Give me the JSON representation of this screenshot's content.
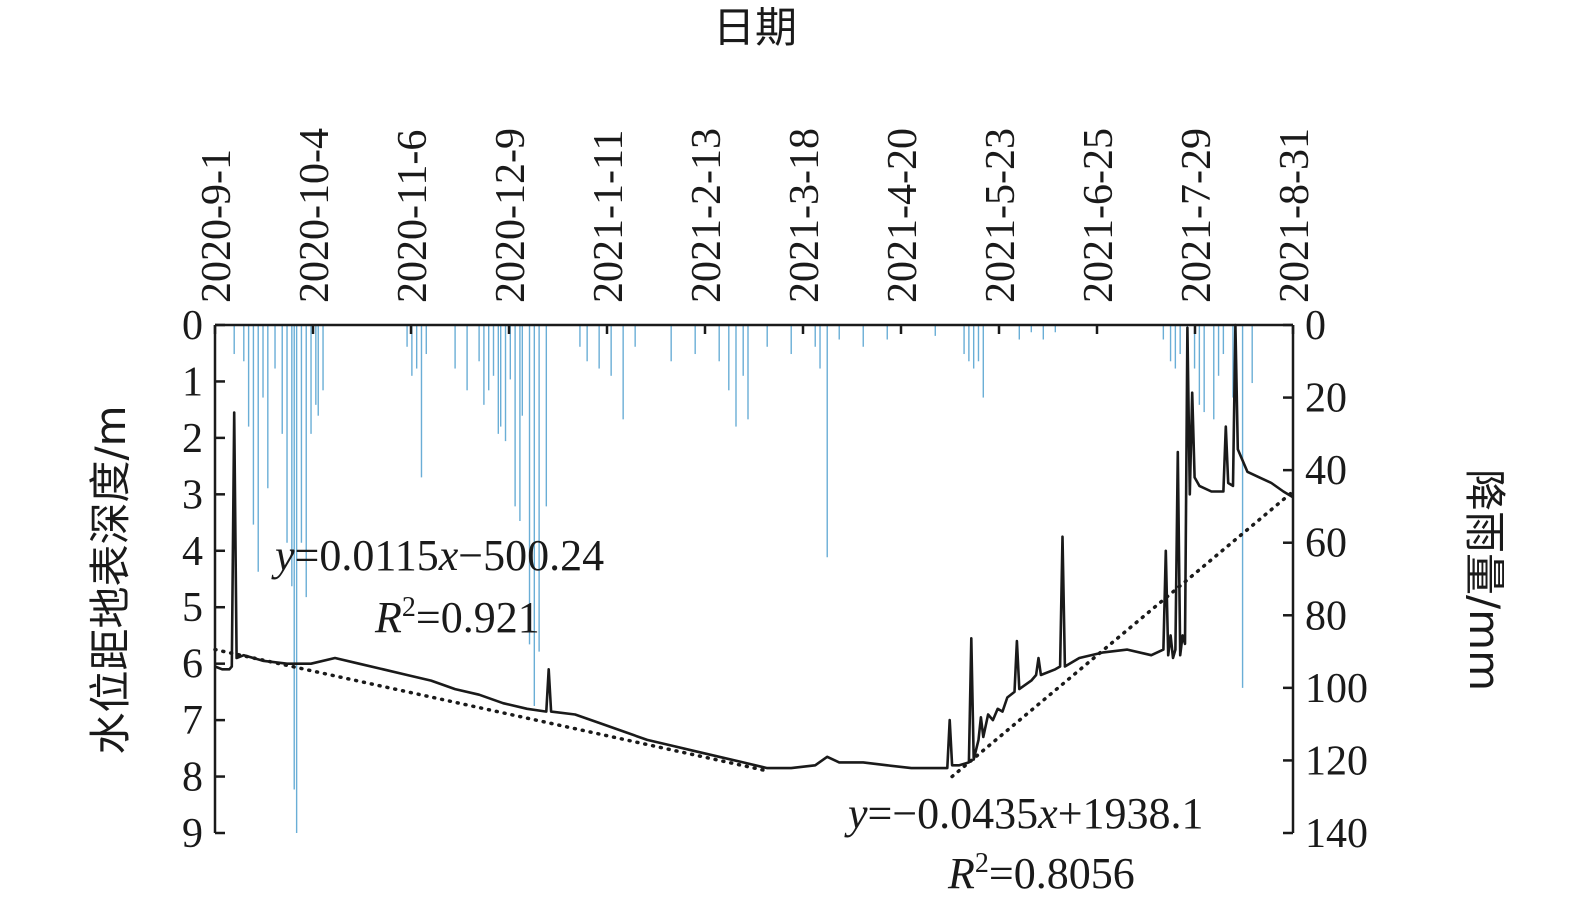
{
  "chart_data": {
    "type": "line",
    "x_axis": {
      "title": "日期",
      "position": "top",
      "tick_labels": [
        "2020-9-1",
        "2020-10-4",
        "2020-11-6",
        "2020-12-9",
        "2021-1-11",
        "2021-2-13",
        "2021-3-18",
        "2021-4-20",
        "2021-5-23",
        "2021-6-25",
        "2021-7-29",
        "2021-8-31"
      ]
    },
    "y_left": {
      "title": "水位距地表深度/m",
      "min": 0,
      "max": 9,
      "inverted": true,
      "ticks": [
        "0",
        "1",
        "2",
        "3",
        "4",
        "5",
        "6",
        "7",
        "8",
        "9"
      ]
    },
    "y_right": {
      "title": "降雨量/mm",
      "min": 0,
      "max": 140,
      "inverted": true,
      "ticks": [
        "0",
        "20",
        "40",
        "60",
        "80",
        "100",
        "120",
        "140"
      ]
    },
    "colors": {
      "water_level": "#1a1a1a",
      "rainfall": "#6aaed6",
      "trend": "#1a1a1a",
      "axis": "#1a1a1a"
    },
    "series": [
      {
        "kind": "line",
        "description": "groundwater depth (m)",
        "points": [
          [
            0,
            6.05
          ],
          [
            3,
            6.1
          ],
          [
            6,
            6.1
          ],
          [
            7,
            6.05
          ],
          [
            8,
            1.55
          ],
          [
            9,
            5.9
          ],
          [
            12,
            5.85
          ],
          [
            20,
            5.95
          ],
          [
            30,
            6.0
          ],
          [
            40,
            6.0
          ],
          [
            50,
            5.9
          ],
          [
            60,
            6.0
          ],
          [
            70,
            6.1
          ],
          [
            80,
            6.2
          ],
          [
            90,
            6.3
          ],
          [
            100,
            6.45
          ],
          [
            110,
            6.55
          ],
          [
            120,
            6.7
          ],
          [
            130,
            6.8
          ],
          [
            138,
            6.85
          ],
          [
            139,
            6.1
          ],
          [
            140,
            6.85
          ],
          [
            150,
            6.9
          ],
          [
            160,
            7.05
          ],
          [
            170,
            7.2
          ],
          [
            180,
            7.35
          ],
          [
            190,
            7.45
          ],
          [
            200,
            7.55
          ],
          [
            210,
            7.65
          ],
          [
            220,
            7.75
          ],
          [
            230,
            7.85
          ],
          [
            240,
            7.85
          ],
          [
            250,
            7.8
          ],
          [
            255,
            7.65
          ],
          [
            260,
            7.75
          ],
          [
            270,
            7.75
          ],
          [
            280,
            7.8
          ],
          [
            290,
            7.85
          ],
          [
            300,
            7.85
          ],
          [
            305,
            7.85
          ],
          [
            306,
            7.0
          ],
          [
            307,
            7.8
          ],
          [
            310,
            7.8
          ],
          [
            314,
            7.75
          ],
          [
            315,
            5.55
          ],
          [
            316,
            7.7
          ],
          [
            318,
            7.35
          ],
          [
            319,
            6.95
          ],
          [
            320,
            7.3
          ],
          [
            322,
            6.9
          ],
          [
            324,
            7.0
          ],
          [
            326,
            6.8
          ],
          [
            328,
            6.85
          ],
          [
            330,
            6.6
          ],
          [
            333,
            6.5
          ],
          [
            334,
            5.6
          ],
          [
            335,
            6.45
          ],
          [
            340,
            6.3
          ],
          [
            342,
            6.2
          ],
          [
            343,
            5.9
          ],
          [
            344,
            6.2
          ],
          [
            350,
            6.1
          ],
          [
            352,
            6.05
          ],
          [
            353,
            3.75
          ],
          [
            354,
            6.05
          ],
          [
            360,
            5.9
          ],
          [
            370,
            5.8
          ],
          [
            380,
            5.75
          ],
          [
            390,
            5.85
          ],
          [
            395,
            5.75
          ],
          [
            396,
            4.0
          ],
          [
            397,
            5.85
          ],
          [
            398,
            5.5
          ],
          [
            399,
            5.9
          ],
          [
            400,
            5.75
          ],
          [
            401,
            2.25
          ],
          [
            402,
            5.85
          ],
          [
            403,
            5.5
          ],
          [
            404,
            5.65
          ],
          [
            405,
            0.05
          ],
          [
            406,
            3.0
          ],
          [
            407,
            1.2
          ],
          [
            408,
            2.7
          ],
          [
            410,
            2.85
          ],
          [
            415,
            2.95
          ],
          [
            420,
            2.95
          ],
          [
            421,
            1.8
          ],
          [
            422,
            2.8
          ],
          [
            424,
            2.85
          ],
          [
            425,
            0.0
          ],
          [
            426,
            2.2
          ],
          [
            430,
            2.6
          ],
          [
            435,
            2.7
          ],
          [
            440,
            2.8
          ],
          [
            445,
            2.95
          ],
          [
            449,
            3.05
          ]
        ]
      },
      {
        "kind": "bar",
        "description": "daily rainfall (mm)",
        "points": [
          [
            8,
            8
          ],
          [
            12,
            10
          ],
          [
            14,
            28
          ],
          [
            16,
            55
          ],
          [
            18,
            68
          ],
          [
            20,
            20
          ],
          [
            22,
            45
          ],
          [
            25,
            12
          ],
          [
            28,
            30
          ],
          [
            30,
            60
          ],
          [
            32,
            72
          ],
          [
            33,
            128
          ],
          [
            34,
            140
          ],
          [
            36,
            60
          ],
          [
            38,
            75
          ],
          [
            40,
            30
          ],
          [
            42,
            22
          ],
          [
            43,
            25
          ],
          [
            45,
            18
          ],
          [
            80,
            6
          ],
          [
            82,
            14
          ],
          [
            84,
            12
          ],
          [
            86,
            42
          ],
          [
            88,
            8
          ],
          [
            100,
            12
          ],
          [
            105,
            18
          ],
          [
            110,
            10
          ],
          [
            112,
            22
          ],
          [
            114,
            18
          ],
          [
            116,
            14
          ],
          [
            118,
            30
          ],
          [
            119,
            28
          ],
          [
            121,
            32
          ],
          [
            123,
            15
          ],
          [
            125,
            50
          ],
          [
            127,
            54
          ],
          [
            128,
            25
          ],
          [
            131,
            88
          ],
          [
            133,
            105
          ],
          [
            135,
            90
          ],
          [
            138,
            50
          ],
          [
            152,
            6
          ],
          [
            155,
            10
          ],
          [
            160,
            12
          ],
          [
            165,
            14
          ],
          [
            170,
            26
          ],
          [
            175,
            6
          ],
          [
            190,
            10
          ],
          [
            200,
            8
          ],
          [
            210,
            10
          ],
          [
            214,
            18
          ],
          [
            217,
            28
          ],
          [
            220,
            14
          ],
          [
            222,
            26
          ],
          [
            230,
            6
          ],
          [
            240,
            8
          ],
          [
            250,
            6
          ],
          [
            252,
            12
          ],
          [
            255,
            64
          ],
          [
            260,
            4
          ],
          [
            270,
            6
          ],
          [
            280,
            4
          ],
          [
            300,
            3
          ],
          [
            312,
            8
          ],
          [
            314,
            10
          ],
          [
            316,
            12
          ],
          [
            318,
            10
          ],
          [
            320,
            20
          ],
          [
            335,
            4
          ],
          [
            340,
            2
          ],
          [
            345,
            4
          ],
          [
            350,
            2
          ],
          [
            395,
            4
          ],
          [
            398,
            10
          ],
          [
            400,
            12
          ],
          [
            402,
            8
          ],
          [
            405,
            14
          ],
          [
            408,
            12
          ],
          [
            410,
            22
          ],
          [
            412,
            24
          ],
          [
            416,
            26
          ],
          [
            418,
            14
          ],
          [
            420,
            8
          ],
          [
            424,
            20
          ],
          [
            428,
            100
          ],
          [
            432,
            16
          ]
        ]
      },
      {
        "kind": "trend",
        "description": "linear fit 1",
        "points": [
          [
            0,
            5.75
          ],
          [
            230,
            7.9
          ]
        ]
      },
      {
        "kind": "trend",
        "description": "linear fit 2",
        "points": [
          [
            307,
            8.0
          ],
          [
            449,
            2.95
          ]
        ]
      }
    ],
    "annotations": [
      {
        "id": "fit1",
        "equation": {
          "y": "y",
          "mid": "=0.0115",
          "x": "x",
          "rest": "−500.24"
        },
        "r2": {
          "r": "R",
          "sup": "2",
          "rest": "=0.921"
        }
      },
      {
        "id": "fit2",
        "equation": {
          "y": "y",
          "mid": "=−0.0435",
          "x": "x",
          "rest": "+1938.1"
        },
        "r2": {
          "r": "R",
          "sup": "2",
          "rest": "=0.8056"
        }
      }
    ],
    "grid": false,
    "legend": "none"
  }
}
